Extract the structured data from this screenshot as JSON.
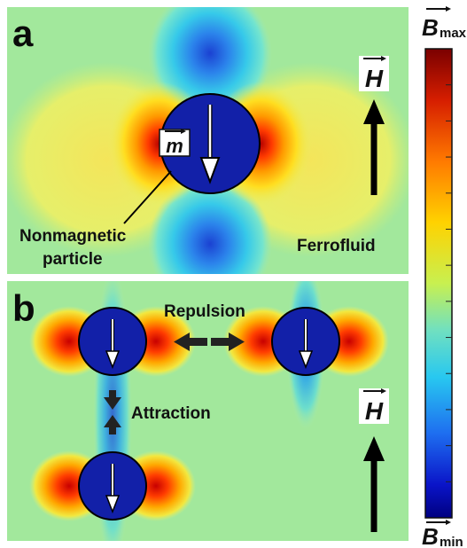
{
  "panel_a": {
    "letter": "a",
    "moment_label": "m",
    "field_label": "H",
    "particle_label_line1": "Nonmagnetic",
    "particle_label_line2": "particle",
    "medium_label": "Ferrofluid"
  },
  "panel_b": {
    "letter": "b",
    "repulsion_label": "Repulsion",
    "attraction_label": "Attraction",
    "field_label": "H"
  },
  "colorbar": {
    "max_label": "B",
    "max_subscript": "max",
    "min_label": "B",
    "min_subscript": "min",
    "stops": [
      "#7a0000",
      "#d61e00",
      "#ff7a00",
      "#ffd200",
      "#c8f050",
      "#70e0c0",
      "#28c8f0",
      "#1e6ef0",
      "#0a14c8",
      "#000080"
    ]
  },
  "colors": {
    "background_field": "#a2e89c",
    "particle_fill": "#1220a8",
    "high_field": "#e62800",
    "low_field": "#1e96f0"
  }
}
